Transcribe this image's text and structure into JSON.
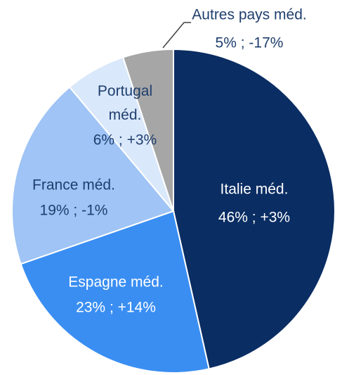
{
  "chart_data": {
    "type": "pie",
    "categories": [
      "Italie méd.",
      "Espagne méd.",
      "France méd.",
      "Portugal méd.",
      "Autres pays méd."
    ],
    "values": [
      46,
      23,
      19,
      6,
      5
    ],
    "value_labels": [
      "46% ; +3%",
      "23% ; +14%",
      "19% ; -1%",
      "6% ; +3%",
      "5% ; -17%"
    ],
    "colors": [
      "#0a2d63",
      "#3a8ef2",
      "#9fc4f5",
      "#dae8fb",
      "#a6a6a6"
    ]
  }
}
